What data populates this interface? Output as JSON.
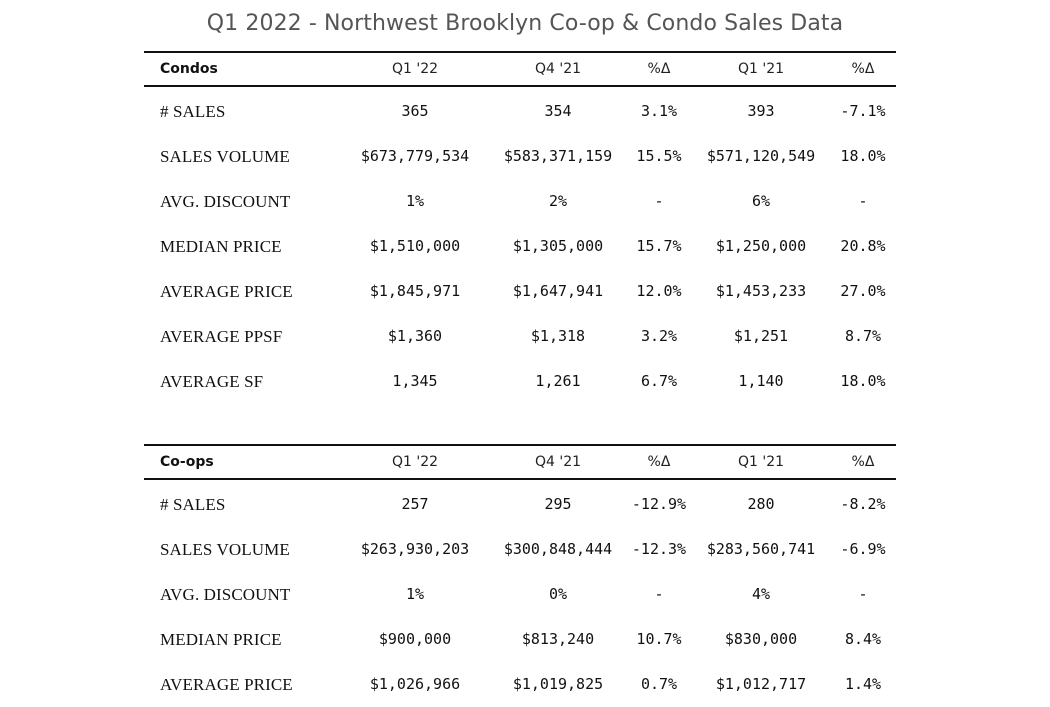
{
  "title": "Q1 2022 - Northwest Brooklyn Co-op & Condo Sales Data",
  "condos": {
    "header": [
      "Condos",
      "Q1 '22",
      "Q4 '21",
      "%Δ",
      "Q1 '21",
      "%Δ"
    ],
    "rows": [
      [
        "# SALES",
        "365",
        "354",
        "3.1%",
        "393",
        "-7.1%"
      ],
      [
        "SALES VOLUME",
        "$673,779,534",
        "$583,371,159",
        "15.5%",
        "$571,120,549",
        "18.0%"
      ],
      [
        "AVG. DISCOUNT",
        "1%",
        "2%",
        "-",
        "6%",
        "-"
      ],
      [
        "MEDIAN PRICE",
        "$1,510,000",
        "$1,305,000",
        "15.7%",
        "$1,250,000",
        "20.8%"
      ],
      [
        "AVERAGE PRICE",
        "$1,845,971",
        "$1,647,941",
        "12.0%",
        "$1,453,233",
        "27.0%"
      ],
      [
        "AVERAGE PPSF",
        "$1,360",
        "$1,318",
        "3.2%",
        "$1,251",
        "8.7%"
      ],
      [
        "AVERAGE SF",
        "1,345",
        "1,261",
        "6.7%",
        "1,140",
        "18.0%"
      ]
    ]
  },
  "coops": {
    "header": [
      "Co-ops",
      "Q1 '22",
      "Q4 '21",
      "%Δ",
      "Q1 '21",
      "%Δ"
    ],
    "rows": [
      [
        "# SALES",
        "257",
        "295",
        "-12.9%",
        "280",
        "-8.2%"
      ],
      [
        "SALES VOLUME",
        "$263,930,203",
        "$300,848,444",
        "-12.3%",
        "$283,560,741",
        "-6.9%"
      ],
      [
        "AVG. DISCOUNT",
        "1%",
        "0%",
        "-",
        "4%",
        "-"
      ],
      [
        "MEDIAN PRICE",
        "$900,000",
        "$813,240",
        "10.7%",
        "$830,000",
        "8.4%"
      ],
      [
        "AVERAGE PRICE",
        "$1,026,966",
        "$1,019,825",
        "0.7%",
        "$1,012,717",
        "1.4%"
      ]
    ]
  }
}
